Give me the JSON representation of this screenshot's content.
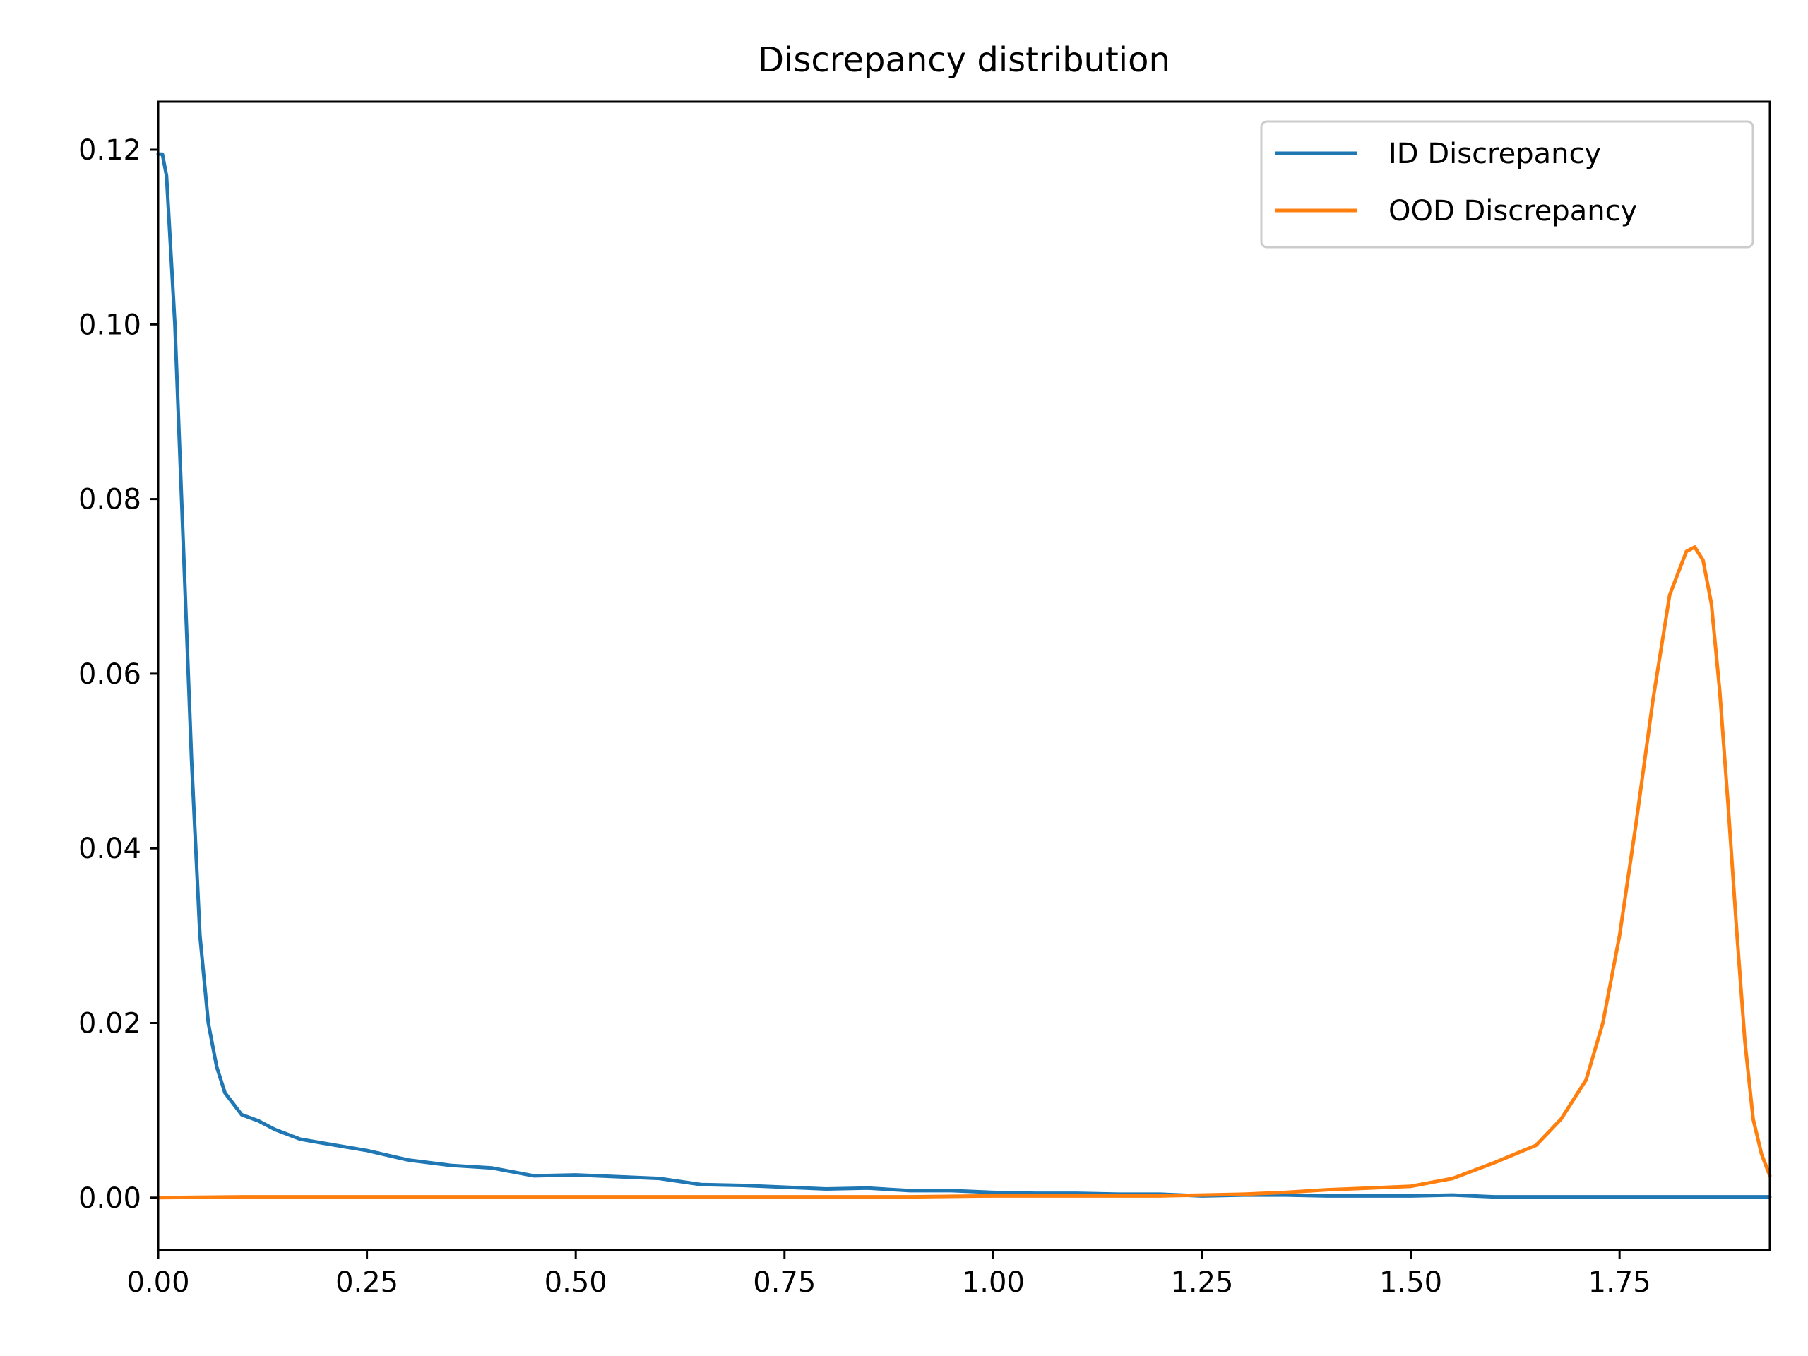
{
  "chart_data": {
    "type": "line",
    "title": "Discrepancy distribution",
    "xlabel": "",
    "ylabel": "",
    "xlim": [
      0.0,
      1.93
    ],
    "ylim": [
      -0.006,
      0.1255
    ],
    "xticks": [
      "0.00",
      "0.25",
      "0.50",
      "0.75",
      "1.00",
      "1.25",
      "1.50",
      "1.75"
    ],
    "yticks": [
      "0.00",
      "0.02",
      "0.04",
      "0.06",
      "0.08",
      "0.10",
      "0.12"
    ],
    "grid": false,
    "legend_position": "upper right",
    "series": [
      {
        "name": "ID Discrepancy",
        "color": "#1f77b4",
        "x": [
          0.0,
          0.005,
          0.01,
          0.02,
          0.03,
          0.04,
          0.05,
          0.06,
          0.07,
          0.08,
          0.1,
          0.12,
          0.14,
          0.17,
          0.2,
          0.25,
          0.3,
          0.35,
          0.4,
          0.45,
          0.5,
          0.55,
          0.6,
          0.65,
          0.7,
          0.75,
          0.8,
          0.85,
          0.9,
          0.95,
          1.0,
          1.05,
          1.1,
          1.15,
          1.2,
          1.25,
          1.3,
          1.35,
          1.4,
          1.45,
          1.5,
          1.55,
          1.6,
          1.65,
          1.7,
          1.75,
          1.8,
          1.85,
          1.9,
          1.93
        ],
        "y": [
          0.1195,
          0.1195,
          0.117,
          0.1,
          0.075,
          0.05,
          0.03,
          0.02,
          0.015,
          0.012,
          0.0095,
          0.0088,
          0.0078,
          0.0067,
          0.0062,
          0.0054,
          0.0043,
          0.0037,
          0.0034,
          0.0025,
          0.0026,
          0.0024,
          0.0022,
          0.0015,
          0.0014,
          0.0012,
          0.001,
          0.0011,
          0.0008,
          0.0008,
          0.0006,
          0.0005,
          0.0005,
          0.0004,
          0.0004,
          0.0002,
          0.0003,
          0.0003,
          0.0002,
          0.0002,
          0.0002,
          0.0003,
          0.0001,
          0.0001,
          0.0001,
          0.0001,
          0.0001,
          0.0001,
          0.0001,
          0.0001
        ]
      },
      {
        "name": "OOD Discrepancy",
        "color": "#ff7f0e",
        "x": [
          0.0,
          0.1,
          0.2,
          0.3,
          0.4,
          0.5,
          0.6,
          0.7,
          0.8,
          0.9,
          1.0,
          1.1,
          1.2,
          1.25,
          1.3,
          1.35,
          1.4,
          1.45,
          1.5,
          1.55,
          1.6,
          1.65,
          1.68,
          1.71,
          1.73,
          1.75,
          1.77,
          1.79,
          1.81,
          1.83,
          1.84,
          1.85,
          1.86,
          1.87,
          1.88,
          1.89,
          1.9,
          1.91,
          1.92,
          1.93
        ],
        "y": [
          0.0,
          0.0001,
          0.0001,
          0.0001,
          0.0001,
          0.0001,
          0.0001,
          0.0001,
          0.0001,
          0.0001,
          0.0002,
          0.0002,
          0.0002,
          0.0003,
          0.0004,
          0.0006,
          0.0009,
          0.0011,
          0.0013,
          0.0022,
          0.004,
          0.006,
          0.009,
          0.0135,
          0.02,
          0.03,
          0.043,
          0.057,
          0.069,
          0.074,
          0.0745,
          0.073,
          0.068,
          0.058,
          0.045,
          0.031,
          0.018,
          0.009,
          0.005,
          0.0025
        ]
      }
    ]
  }
}
